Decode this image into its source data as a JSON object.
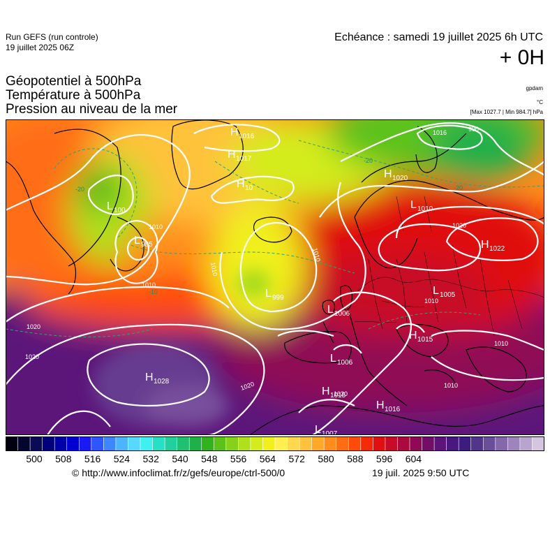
{
  "header": {
    "run_name": "Run GEFS (run controle)",
    "run_date": "19 juillet 2025 06Z",
    "forecast_time": "Echéance : samedi 19 juillet 2025 6h UTC",
    "offset": "+ 0H"
  },
  "params": {
    "line1": "Géopotentiel à 500hPa",
    "line2": "Température à 500hPa",
    "line3": "Pression au niveau de la mer"
  },
  "units": {
    "geopotential": "gpdam",
    "temperature": "°C",
    "pressure": "[Max 1027.7 | Min 984.7] hPa"
  },
  "pressure_centers": [
    {
      "type": "H",
      "value": "1016"
    },
    {
      "type": "H",
      "value": "1017"
    },
    {
      "type": "H",
      "value": "10"
    },
    {
      "type": "L",
      "value": "100"
    },
    {
      "type": "L",
      "value": "985"
    },
    {
      "type": "L",
      "value": "999"
    },
    {
      "type": "L",
      "value": "1006"
    },
    {
      "type": "L",
      "value": "1006"
    },
    {
      "type": "H",
      "value": "1020"
    },
    {
      "type": "L",
      "value": "1010"
    },
    {
      "type": "H",
      "value": "1022"
    },
    {
      "type": "L",
      "value": "1005"
    },
    {
      "type": "H",
      "value": "1015"
    },
    {
      "type": "H",
      "value": "1028"
    },
    {
      "type": "H",
      "value": "1015"
    },
    {
      "type": "H",
      "value": "1016"
    },
    {
      "type": "L",
      "value": "1007"
    }
  ],
  "isobar_labels": [
    "1016",
    "1010",
    "1010",
    "1010",
    "1020",
    "1020",
    "1020",
    "1010",
    "1010",
    "990",
    "1010",
    "1020",
    "1010",
    "1020"
  ],
  "isotherm_labels": [
    "-20",
    "-20",
    "-20",
    "-10"
  ],
  "colorbar": {
    "ticks": [
      "500",
      "508",
      "516",
      "524",
      "532",
      "540",
      "548",
      "556",
      "564",
      "572",
      "580",
      "588",
      "596",
      "604"
    ],
    "colors": [
      "#000010",
      "#05052e",
      "#0a0a55",
      "#00007a",
      "#0000a8",
      "#0000d2",
      "#1a1af5",
      "#2f55ff",
      "#3c86ff",
      "#4bb5ff",
      "#57d8ff",
      "#3ef0f0",
      "#27e0c4",
      "#20d09e",
      "#20c073",
      "#20b04a",
      "#32b21c",
      "#5cc21a",
      "#86d21a",
      "#b0e01a",
      "#d4ec1d",
      "#f0f01f",
      "#fff050",
      "#ffd84e",
      "#ffc23a",
      "#ffa926",
      "#ff8c1c",
      "#ff6d12",
      "#ff4c0b",
      "#f52a08",
      "#e01010",
      "#c80b28",
      "#ab0a3e",
      "#8f0a54",
      "#720d68",
      "#5c137a",
      "#48187e",
      "#3c1d7d",
      "#53348b",
      "#6b4e9a",
      "#8468aa",
      "#9d84ba",
      "#b8a4cc",
      "#d4c6df"
    ]
  },
  "footer": {
    "copyright": "© http://www.infoclimat.fr/z/gefs/europe/ctrl-500/0",
    "generated": "19 juil. 2025  9:50 UTC"
  }
}
